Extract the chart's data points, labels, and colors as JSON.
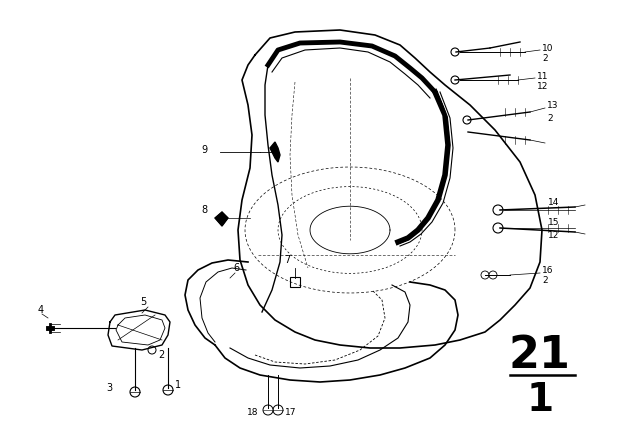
{
  "bg_color": "#ffffff",
  "line_color": "#000000",
  "page_num": "21",
  "page_sub": "1",
  "figsize": [
    6.4,
    4.48
  ],
  "dpi": 100,
  "xlim": [
    0,
    640
  ],
  "ylim": [
    0,
    448
  ]
}
